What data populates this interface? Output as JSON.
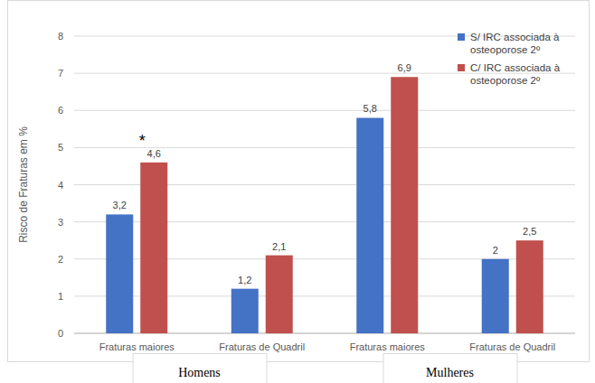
{
  "chart_data": {
    "type": "bar",
    "y_label": "Risco de Fraturas em %",
    "categories": [
      "Fraturas maiores",
      "Fraturas de Quadril",
      "Fraturas maiores",
      "Fraturas de Quadril"
    ],
    "groups": [
      "Homens",
      "Mulheres"
    ],
    "series": [
      {
        "name": "S/ IRC associada à osteoporose 2º",
        "color": "#4472c4",
        "values": [
          3.2,
          1.2,
          5.8,
          2
        ],
        "value_labels": [
          "3,2",
          "1,2",
          "5,8",
          "2"
        ]
      },
      {
        "name": "C/ IRC associada à osteoporose 2º",
        "color": "#c0504d",
        "values": [
          4.6,
          2.1,
          6.9,
          2.5
        ],
        "value_labels": [
          "4,6",
          "2,1",
          "6,9",
          "2,5"
        ]
      }
    ],
    "annotations": [
      "*"
    ],
    "ylim": [
      0,
      8
    ],
    "yticks": [
      0,
      1,
      2,
      3,
      4,
      5,
      6,
      7,
      8
    ],
    "grid": true,
    "data_labels": true,
    "legend": "top-right"
  }
}
